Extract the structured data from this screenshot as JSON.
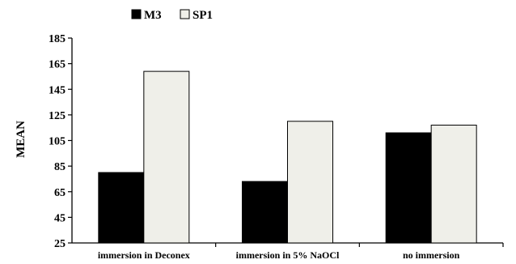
{
  "chart_data": {
    "type": "bar",
    "title": "",
    "xlabel": "",
    "ylabel": "MEAN",
    "categories": [
      "immersion in Deconex",
      "immersion in 5% NaOCl",
      "no immersion"
    ],
    "series": [
      {
        "name": "M3",
        "values": [
          80,
          73,
          111
        ],
        "color": "#000000"
      },
      {
        "name": "SP1",
        "values": [
          159,
          120,
          117
        ],
        "color": "#efefe9"
      }
    ],
    "ylim": [
      25,
      185
    ],
    "yticks": [
      25,
      45,
      65,
      85,
      105,
      125,
      145,
      165,
      185
    ],
    "grid": false,
    "legend_position": "top-left"
  }
}
